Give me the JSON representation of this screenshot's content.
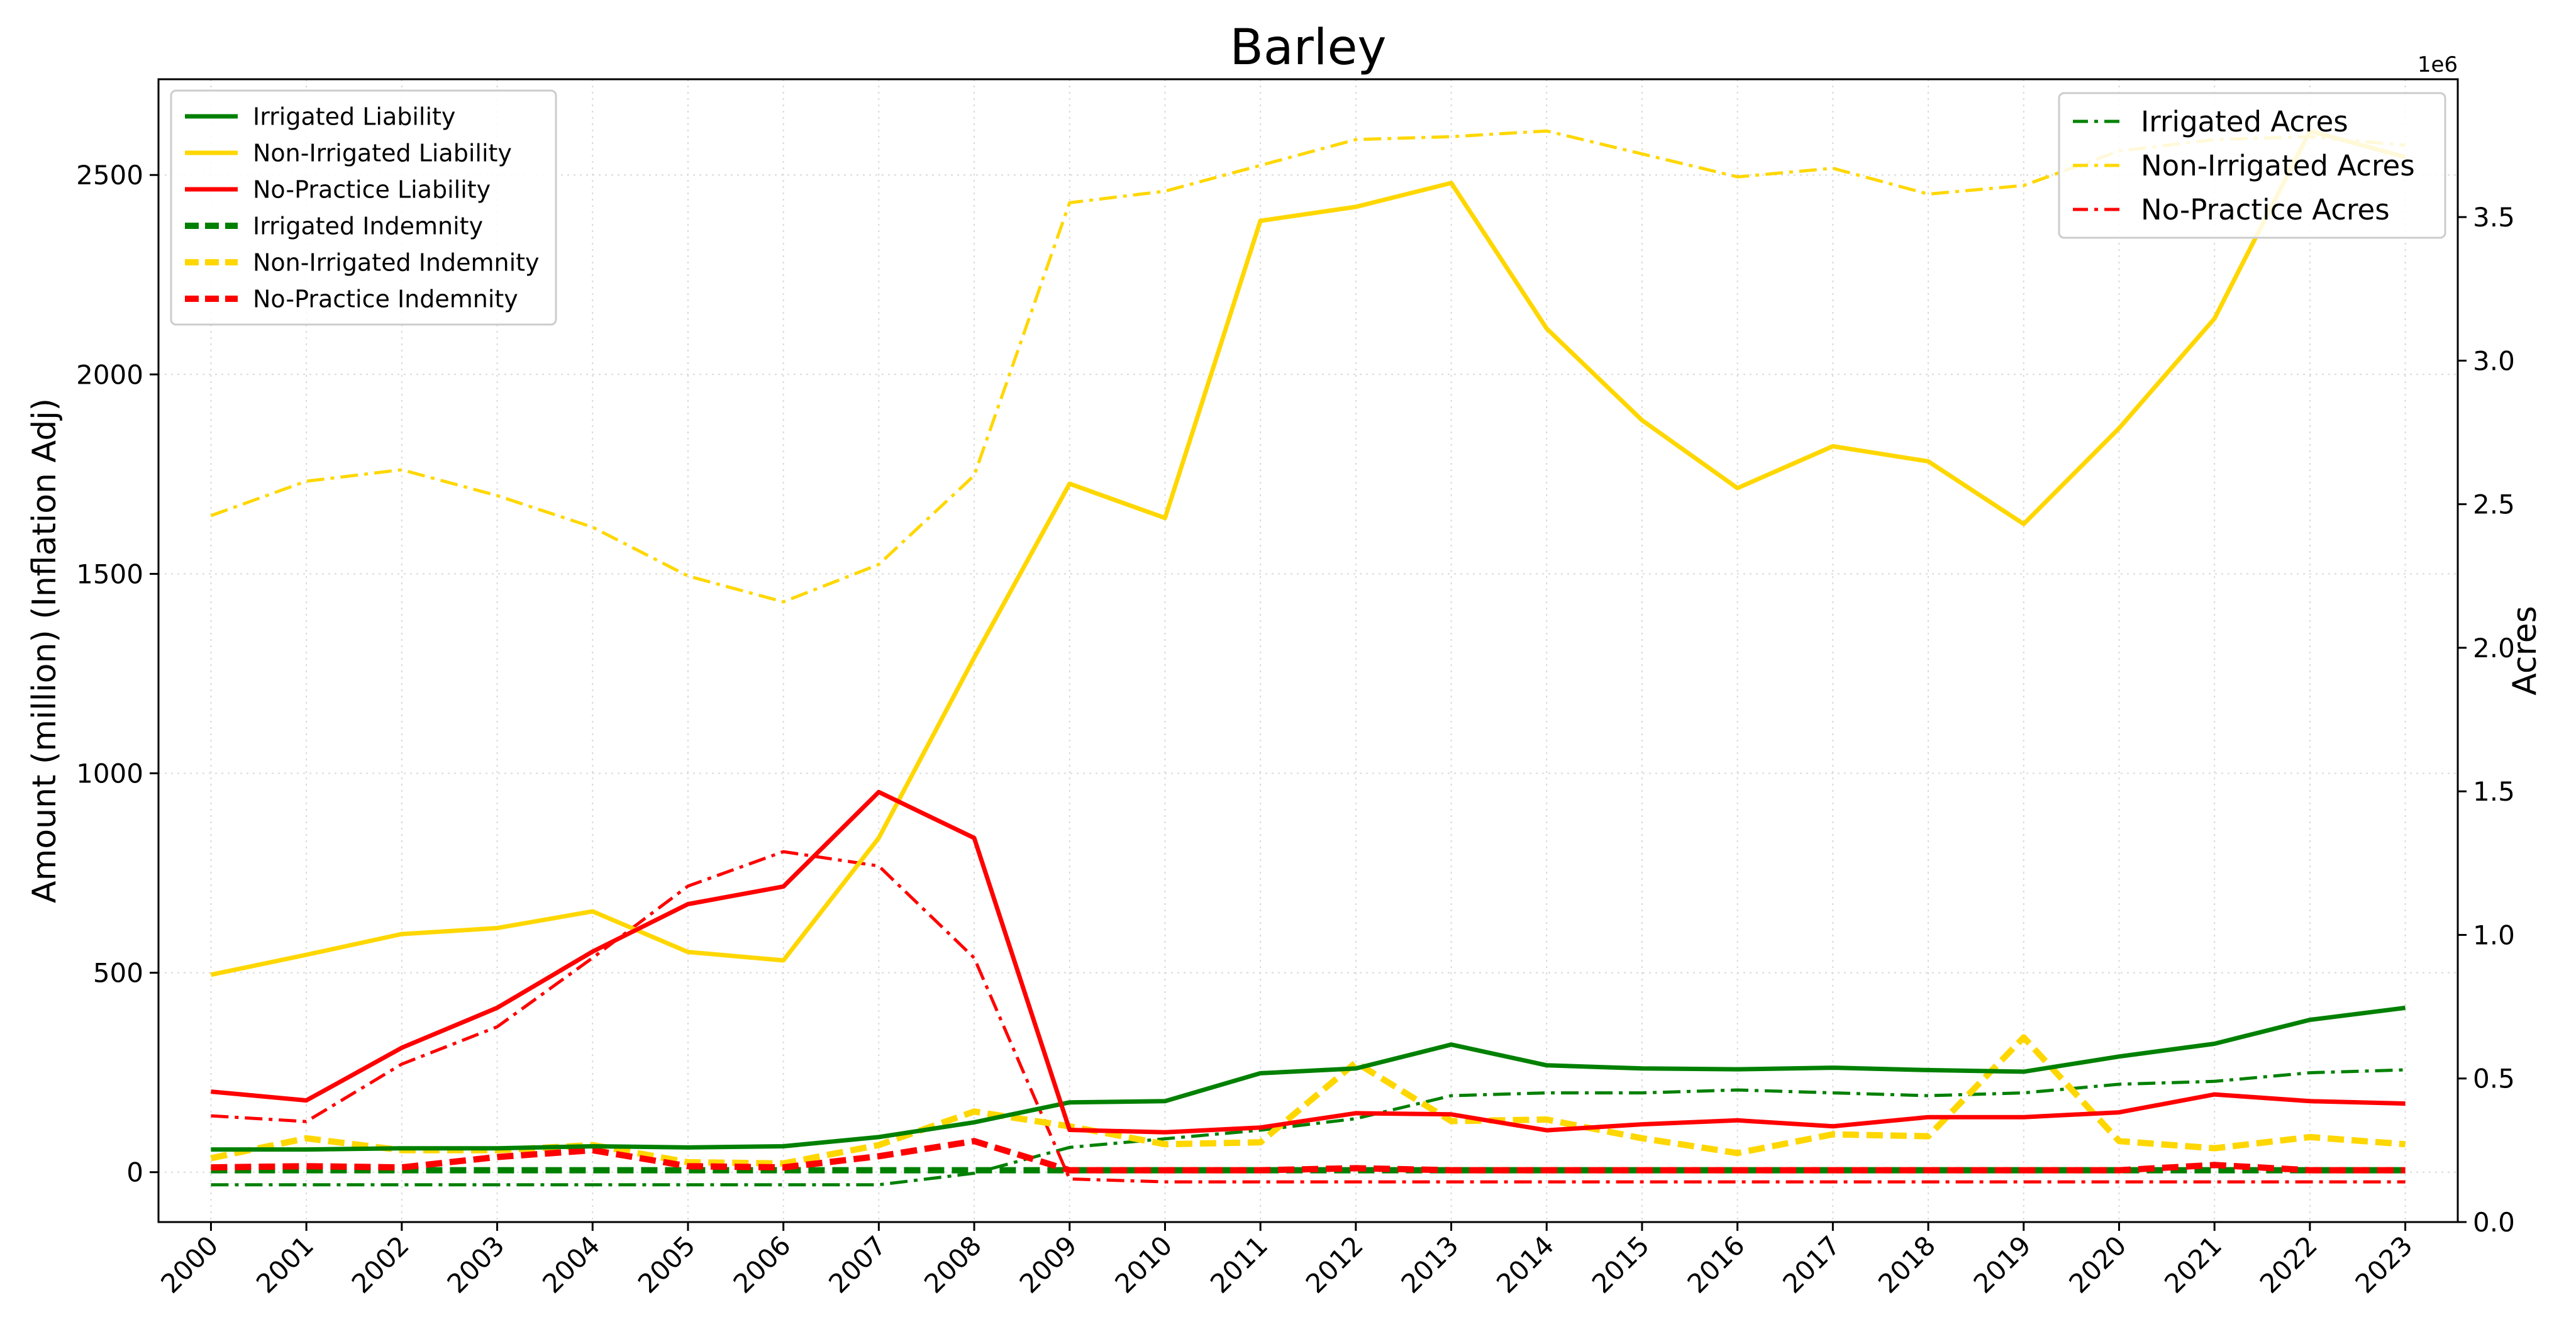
{
  "chart_data": {
    "type": "line",
    "title": "Barley",
    "xlabel": "",
    "ylabel": "Amount (million) (Inflation Adj)",
    "y2label": "Acres",
    "y2_offset_text": "1e6",
    "x": [
      2000,
      2001,
      2002,
      2003,
      2004,
      2005,
      2006,
      2007,
      2008,
      2009,
      2010,
      2011,
      2012,
      2013,
      2014,
      2015,
      2016,
      2017,
      2018,
      2019,
      2020,
      2021,
      2022,
      2023
    ],
    "x_ticks": [
      "2000",
      "2001",
      "2002",
      "2003",
      "2004",
      "2005",
      "2006",
      "2007",
      "2008",
      "2009",
      "2010",
      "2011",
      "2012",
      "2013",
      "2014",
      "2015",
      "2016",
      "2017",
      "2018",
      "2019",
      "2020",
      "2021",
      "2022",
      "2023"
    ],
    "ylim": [
      -125,
      2740
    ],
    "y_ticks": [
      0,
      500,
      1000,
      1500,
      2000,
      2500
    ],
    "y2lim": [
      0.0,
      3.98
    ],
    "y2_ticks": [
      0.0,
      0.5,
      1.0,
      1.5,
      2.0,
      2.5,
      3.0,
      3.5
    ],
    "y2_tick_labels": [
      "0.0",
      "0.5",
      "1.0",
      "1.5",
      "2.0",
      "2.5",
      "3.0",
      "3.5"
    ],
    "grid": true,
    "series": [
      {
        "name": "Irrigated Liability",
        "axis": "left",
        "style": "solid",
        "color": "#008000",
        "values": [
          57,
          57,
          60,
          60,
          65,
          62,
          65,
          88,
          125,
          175,
          178,
          248,
          260,
          320,
          268,
          260,
          258,
          262,
          256,
          252,
          290,
          322,
          382,
          412
        ]
      },
      {
        "name": "Non-Irrigated Liability",
        "axis": "left",
        "style": "solid",
        "color": "#FFD700",
        "values": [
          495,
          545,
          597,
          612,
          654,
          552,
          531,
          838,
          1290,
          1726,
          1640,
          2385,
          2420,
          2480,
          2115,
          1885,
          1715,
          1820,
          1782,
          1625,
          1865,
          2140,
          2610,
          2545
        ]
      },
      {
        "name": "No-Practice Liability",
        "axis": "left",
        "style": "solid",
        "color": "#FF0000",
        "values": [
          202,
          180,
          312,
          412,
          553,
          672,
          716,
          953,
          838,
          106,
          100,
          112,
          148,
          145,
          105,
          120,
          130,
          115,
          138,
          138,
          150,
          195,
          178,
          172
        ]
      },
      {
        "name": "Irrigated Indemnity",
        "axis": "left",
        "style": "dashed",
        "color": "#008000",
        "values": [
          5,
          5,
          5,
          5,
          5,
          5,
          5,
          5,
          5,
          5,
          5,
          5,
          5,
          5,
          5,
          5,
          5,
          5,
          5,
          5,
          5,
          5,
          5,
          5
        ]
      },
      {
        "name": "Non-Irrigated Indemnity",
        "axis": "left",
        "style": "dashed",
        "color": "#FFD700",
        "values": [
          35,
          85,
          55,
          55,
          68,
          25,
          22,
          68,
          152,
          115,
          70,
          75,
          275,
          128,
          132,
          85,
          48,
          95,
          90,
          338,
          78,
          60,
          88,
          70
        ]
      },
      {
        "name": "No-Practice Indemnity",
        "axis": "left",
        "style": "dashed",
        "color": "#FF0000",
        "values": [
          12,
          15,
          12,
          38,
          55,
          15,
          12,
          40,
          78,
          5,
          5,
          5,
          10,
          5,
          5,
          5,
          5,
          5,
          5,
          5,
          5,
          18,
          5,
          5
        ]
      },
      {
        "name": "Irrigated Acres",
        "axis": "right",
        "style": "dashdot",
        "color": "#008000",
        "values": [
          0.13,
          0.13,
          0.13,
          0.13,
          0.13,
          0.13,
          0.13,
          0.13,
          0.17,
          0.26,
          0.29,
          0.32,
          0.36,
          0.44,
          0.45,
          0.45,
          0.46,
          0.45,
          0.44,
          0.45,
          0.48,
          0.49,
          0.52,
          0.53
        ]
      },
      {
        "name": "Non-Irrigated Acres",
        "axis": "right",
        "style": "dashdot",
        "color": "#FFD700",
        "values": [
          2.46,
          2.58,
          2.62,
          2.53,
          2.42,
          2.25,
          2.16,
          2.29,
          2.6,
          3.55,
          3.59,
          3.68,
          3.77,
          3.78,
          3.8,
          3.72,
          3.64,
          3.67,
          3.58,
          3.61,
          3.73,
          3.77,
          3.78,
          3.75
        ]
      },
      {
        "name": "No-Practice Acres",
        "axis": "right",
        "style": "dashdot",
        "color": "#FF0000",
        "values": [
          0.37,
          0.35,
          0.55,
          0.68,
          0.92,
          1.17,
          1.29,
          1.24,
          0.92,
          0.15,
          0.14,
          0.14,
          0.14,
          0.14,
          0.14,
          0.14,
          0.14,
          0.14,
          0.14,
          0.14,
          0.14,
          0.14,
          0.14,
          0.14
        ]
      }
    ],
    "legends": [
      {
        "placement": "upper-left",
        "entries": [
          "Irrigated Liability",
          "Non-Irrigated Liability",
          "No-Practice Liability",
          "Irrigated Indemnity",
          "Non-Irrigated Indemnity",
          "No-Practice Indemnity"
        ]
      },
      {
        "placement": "upper-right",
        "entries": [
          "Irrigated Acres",
          "Non-Irrigated Acres",
          "No-Practice Acres"
        ]
      }
    ]
  }
}
